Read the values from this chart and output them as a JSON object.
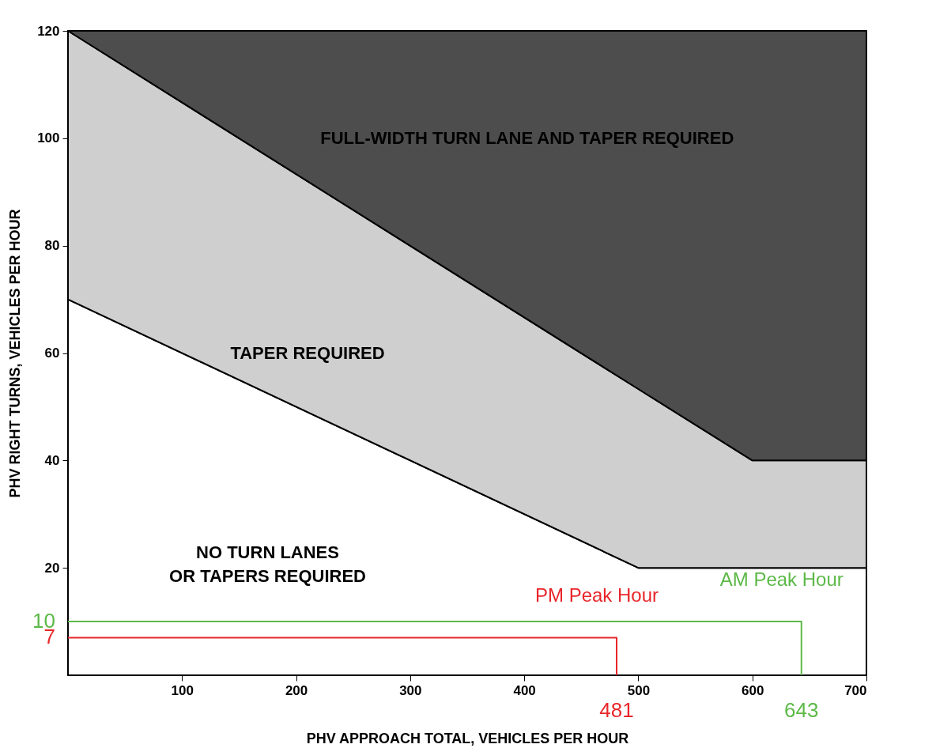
{
  "chart_data": {
    "type": "area",
    "stacked": true,
    "xlabel": "PHV APPROACH TOTAL, VEHICLES PER HOUR",
    "ylabel": "PHV RIGHT TURNS, VEHICLES PER HOUR",
    "xlim": [
      0,
      700
    ],
    "ylim": [
      0,
      120
    ],
    "xticks": [
      100,
      200,
      300,
      400,
      500,
      600,
      700
    ],
    "yticks": [
      20,
      40,
      60,
      80,
      100,
      120
    ],
    "series": [
      {
        "color": "#ffffff",
        "x": [
          0,
          500,
          600,
          700
        ],
        "values": [
          70,
          20,
          20,
          20
        ]
      },
      {
        "color": "#cfcfcf",
        "x": [
          0,
          500,
          600,
          700
        ],
        "values": [
          50,
          33.3,
          20,
          20
        ]
      },
      {
        "color": "#4d4d4d",
        "x": [
          0,
          500,
          600,
          700
        ],
        "values": [
          0,
          66.7,
          80,
          80
        ]
      },
      {
        "type": "line",
        "name": "PM Peak Hour",
        "color": "#e8262a",
        "x": [
          0,
          481,
          481
        ],
        "values": [
          7,
          7,
          0
        ]
      },
      {
        "type": "line",
        "name": "AM Peak Hour",
        "color": "#5cb947",
        "x": [
          0,
          643,
          643
        ],
        "values": [
          10,
          10,
          0
        ]
      }
    ],
    "annotations": [
      "FULL-WIDTH TURN LANE AND TAPER REQUIRED",
      "TAPER REQUIRED",
      "NO TURN LANES\nOR TAPERS REQUIRED",
      {
        "text": "7",
        "x": 0,
        "y": 7
      },
      {
        "text": "481",
        "x": 481,
        "y": 0
      },
      {
        "text": "10",
        "x": 0,
        "y": 10
      },
      {
        "text": "643",
        "x": 643,
        "y": 0
      }
    ]
  }
}
